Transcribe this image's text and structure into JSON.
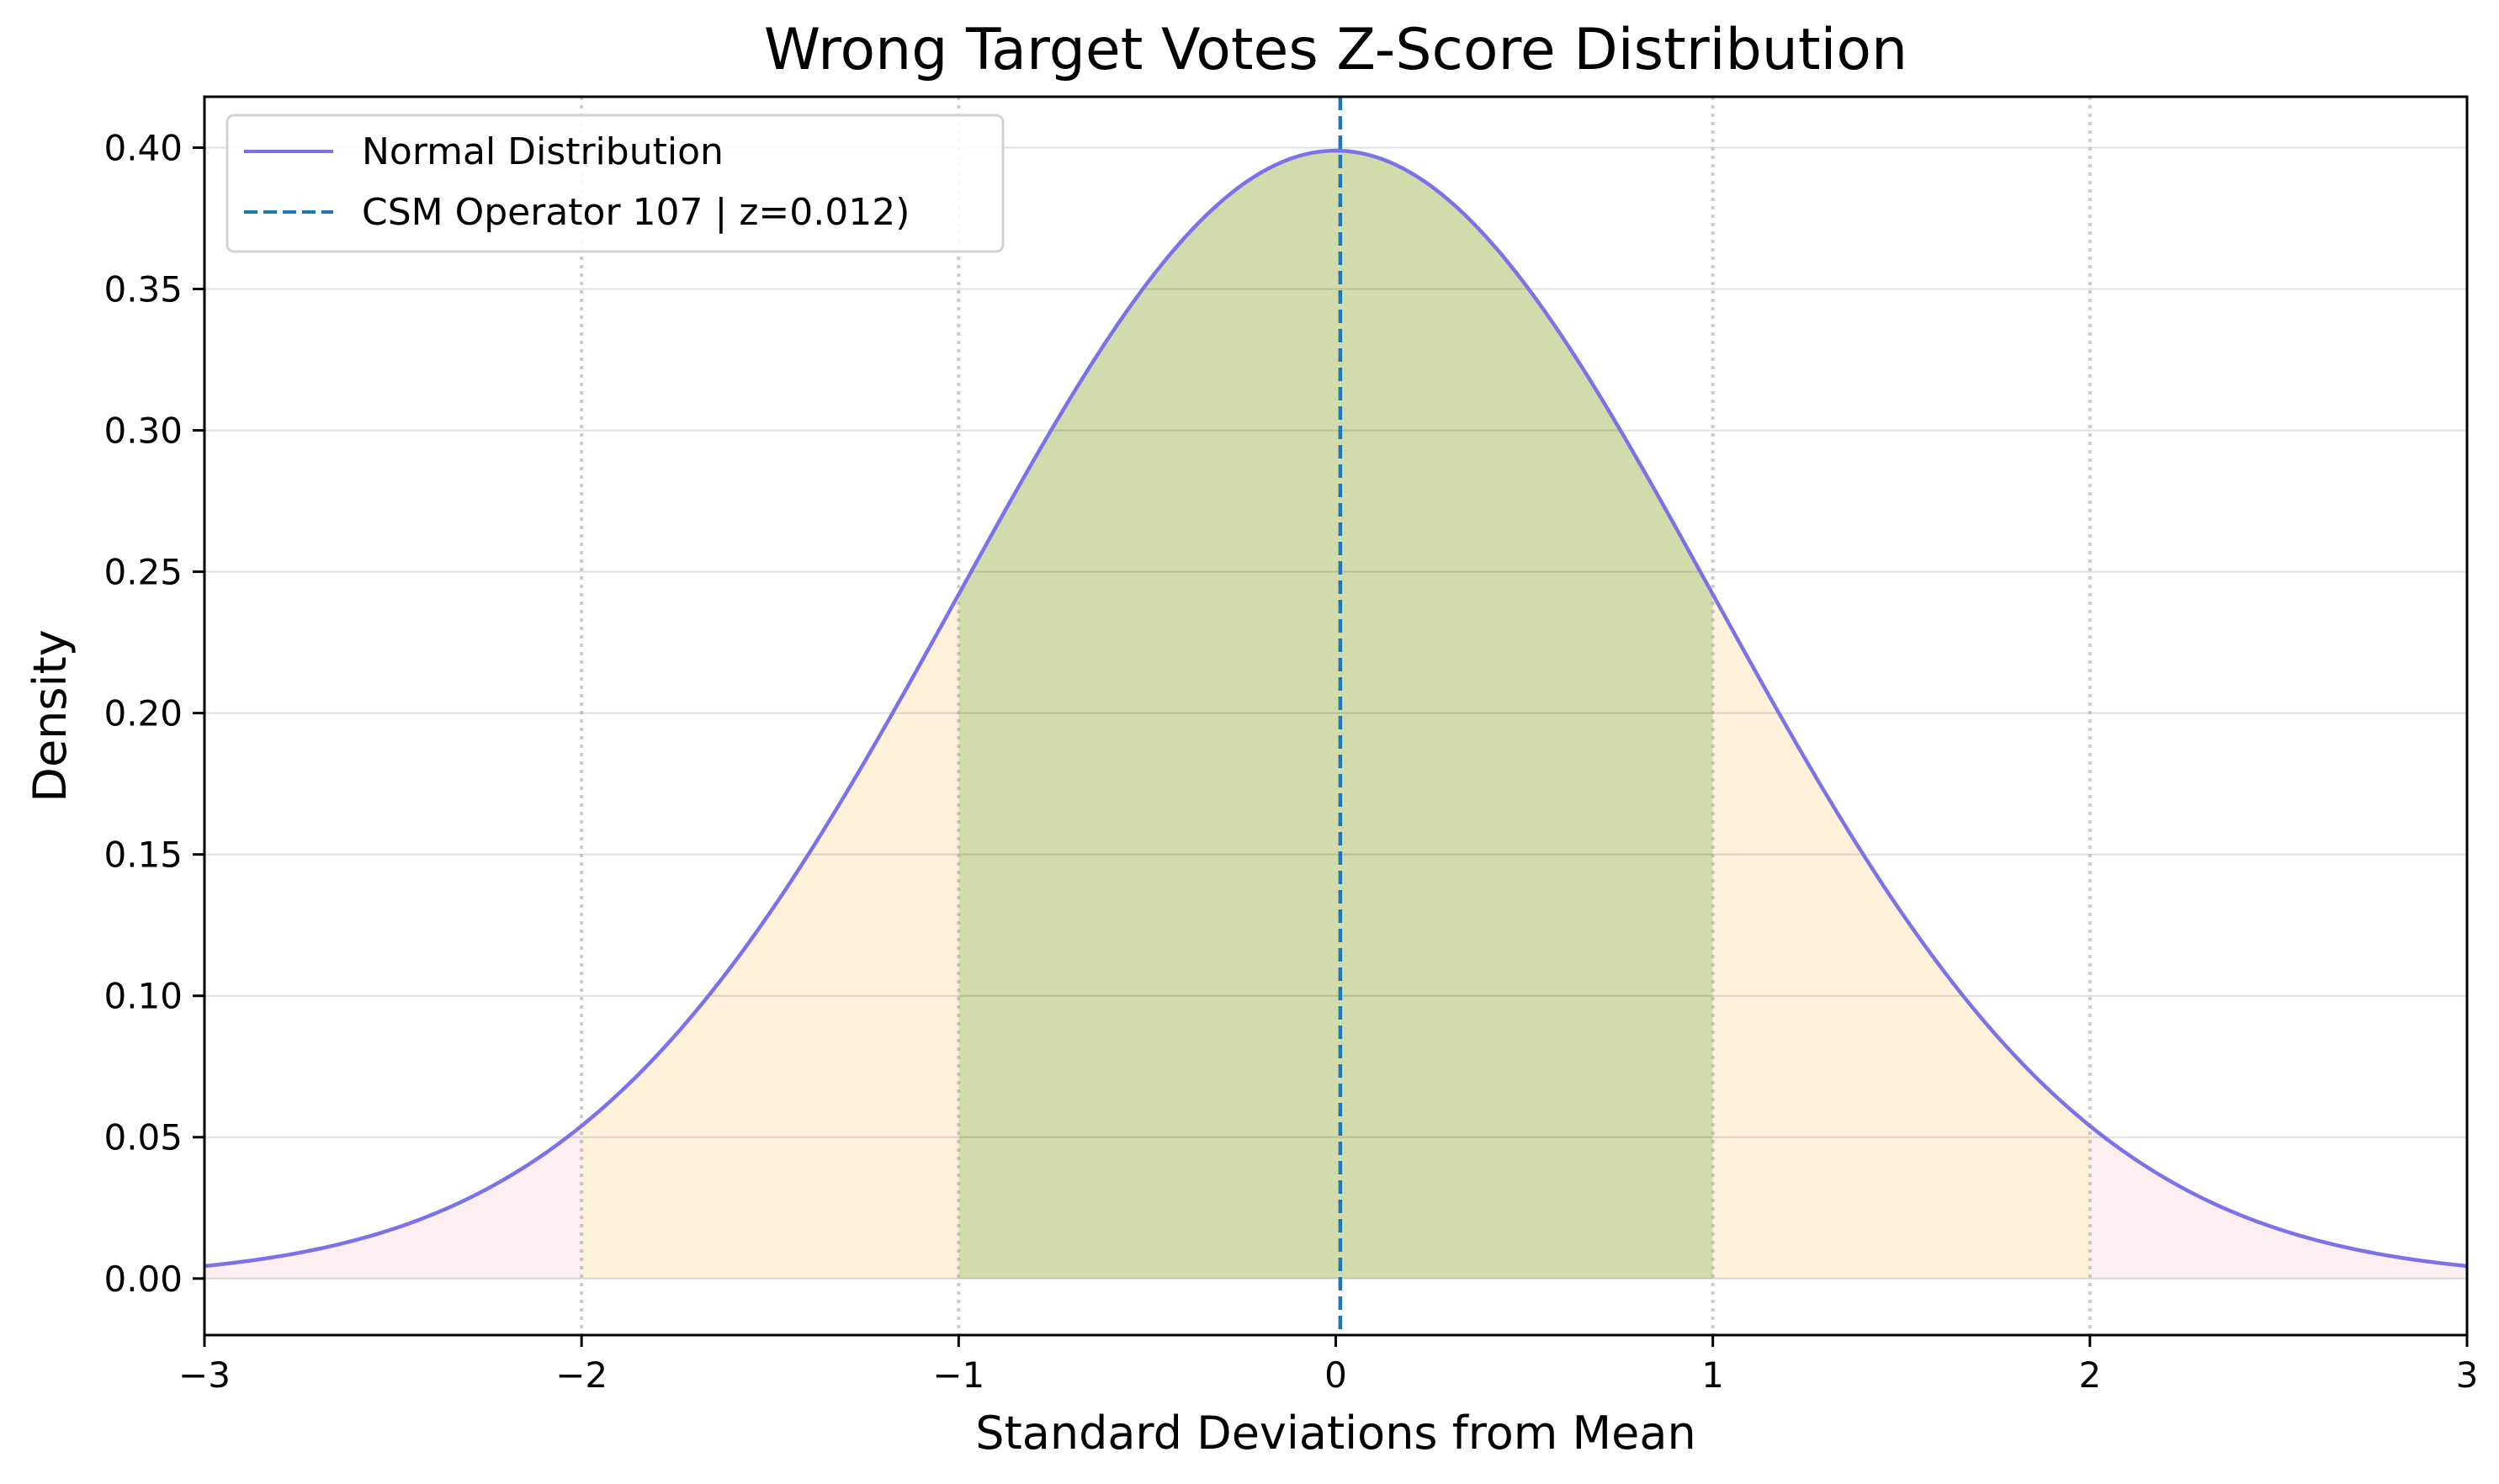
{
  "chart_data": {
    "type": "area",
    "title": "Wrong Target Votes Z-Score Distribution",
    "xlabel": "Standard Deviations from Mean",
    "ylabel": "Density",
    "xlim": [
      -3,
      3
    ],
    "ylim": [
      -0.02,
      0.418
    ],
    "x_ticks": [
      -3,
      -2,
      -1,
      0,
      1,
      2,
      3
    ],
    "x_tick_labels": [
      "−3",
      "−2",
      "−1",
      "0",
      "1",
      "2",
      "3"
    ],
    "y_ticks": [
      0.0,
      0.05,
      0.1,
      0.15,
      0.2,
      0.25,
      0.3,
      0.35,
      0.4
    ],
    "y_tick_labels": [
      "0.00",
      "0.05",
      "0.10",
      "0.15",
      "0.20",
      "0.25",
      "0.30",
      "0.35",
      "0.40"
    ],
    "grid": "horizontal",
    "sigma_guides": [
      -2,
      -1,
      1,
      2
    ],
    "series": [
      {
        "name": "Normal Distribution",
        "kind": "line",
        "color": "#7b72e9",
        "x": [
          -3.0,
          -2.75,
          -2.5,
          -2.25,
          -2.0,
          -1.75,
          -1.5,
          -1.25,
          -1.0,
          -0.75,
          -0.5,
          -0.25,
          0.0,
          0.25,
          0.5,
          0.75,
          1.0,
          1.25,
          1.5,
          1.75,
          2.0,
          2.25,
          2.5,
          2.75,
          3.0
        ],
        "values": [
          0.0044,
          0.0091,
          0.0175,
          0.0317,
          0.054,
          0.0863,
          0.1295,
          0.1826,
          0.242,
          0.3011,
          0.3521,
          0.3867,
          0.3989,
          0.3867,
          0.3521,
          0.3011,
          0.242,
          0.1826,
          0.1295,
          0.0863,
          0.054,
          0.0317,
          0.0175,
          0.0091,
          0.0044
        ]
      },
      {
        "name": "CSM Operator 107 | z=0.012)",
        "kind": "vline",
        "color": "#1f77b4",
        "x": 0.012
      }
    ],
    "shaded_regions": [
      {
        "from": -3,
        "to": -2,
        "color": "#fdeef2"
      },
      {
        "from": -2,
        "to": -1,
        "color": "#fdf1da"
      },
      {
        "from": -1,
        "to": 1,
        "color": "#d2dbab"
      },
      {
        "from": 1,
        "to": 2,
        "color": "#fdf1da"
      },
      {
        "from": 2,
        "to": 3,
        "color": "#fdeef2"
      }
    ],
    "legend": {
      "placement": "upper-left",
      "entries": [
        "Normal Distribution",
        "CSM Operator 107 | z=0.012)"
      ]
    }
  }
}
